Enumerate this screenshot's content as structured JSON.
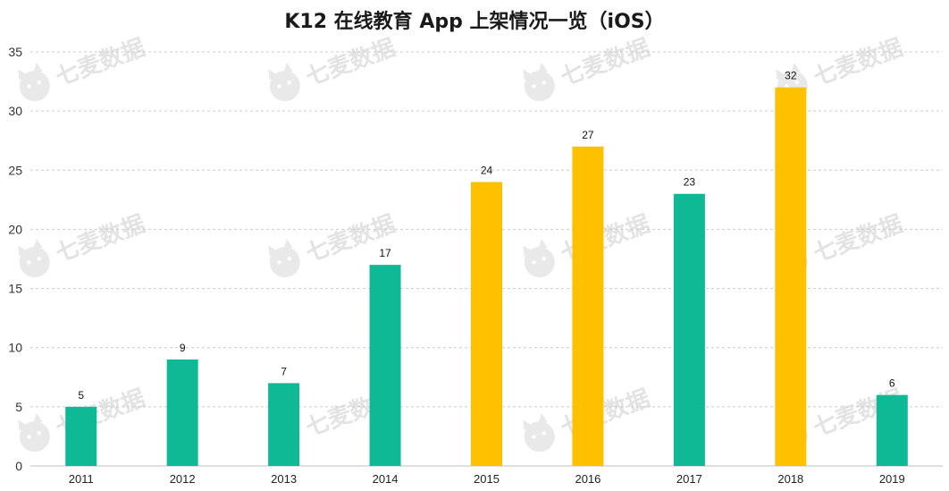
{
  "chart_data": {
    "type": "bar",
    "title": "K12 在线教育 App 上架情况一览（iOS）",
    "xlabel": "",
    "ylabel": "",
    "categories": [
      "2011",
      "2012",
      "2013",
      "2014",
      "2015",
      "2016",
      "2017",
      "2018",
      "2019"
    ],
    "values": [
      5,
      9,
      7,
      17,
      24,
      27,
      23,
      32,
      6
    ],
    "bar_colors": [
      "#10b995",
      "#10b995",
      "#10b995",
      "#10b995",
      "#ffc000",
      "#ffc000",
      "#10b995",
      "#ffc000",
      "#10b995"
    ],
    "yticks": [
      "0",
      "5",
      "10",
      "15",
      "20",
      "25",
      "30",
      "35"
    ],
    "ylim": [
      0,
      35
    ],
    "grid": true,
    "grid_style": "dashed",
    "legend": "none",
    "data_labels": true
  },
  "colors": {
    "teal": "#10b995",
    "gold": "#ffc000",
    "grid": "#cccccc",
    "axis": "#bfbfbf"
  },
  "watermark": {
    "text": "七麦数据",
    "icon": "cat-logo-icon"
  }
}
